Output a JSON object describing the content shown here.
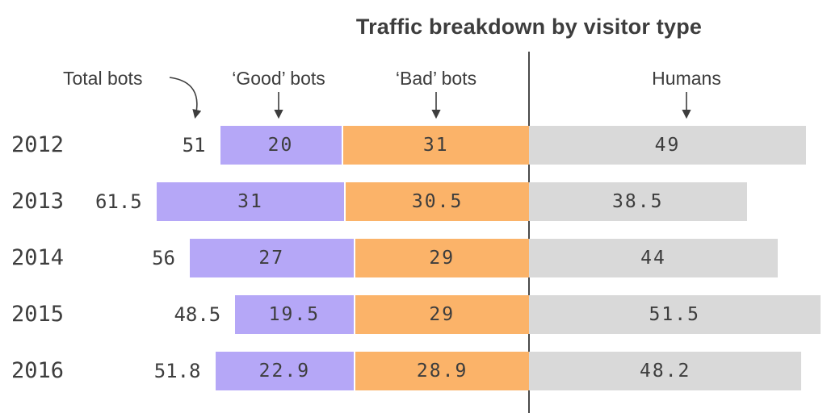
{
  "title": "Traffic breakdown by visitor type",
  "legend": {
    "total": "Total bots",
    "good": "‘Good’ bots",
    "bad": "‘Bad’ bots",
    "humans": "Humans"
  },
  "colors": {
    "good_bots": "#b5a7f7",
    "bad_bots": "#fbb369",
    "humans": "#d9d9d9",
    "divider": "#4a4a4a",
    "text": "#3d3d3d"
  },
  "chart_data": {
    "type": "bar",
    "orientation": "horizontal",
    "stacked": true,
    "title": "Traffic breakdown by visitor type",
    "unit": "percent",
    "categories": [
      "2012",
      "2013",
      "2014",
      "2015",
      "2016"
    ],
    "series": [
      {
        "name": "Total bots",
        "values": [
          51,
          61.5,
          56,
          48.5,
          51.8
        ]
      },
      {
        "name": "‘Good’ bots",
        "values": [
          20,
          31,
          27,
          19.5,
          22.9
        ]
      },
      {
        "name": "‘Bad’ bots",
        "values": [
          31,
          30.5,
          29,
          29,
          28.9
        ]
      },
      {
        "name": "Humans",
        "values": [
          49,
          38.5,
          44,
          51.5,
          48.2
        ]
      }
    ],
    "layout": {
      "divider": "bots extend left of vertical line, humans extend right",
      "legend_position": "top",
      "grid": false
    }
  }
}
